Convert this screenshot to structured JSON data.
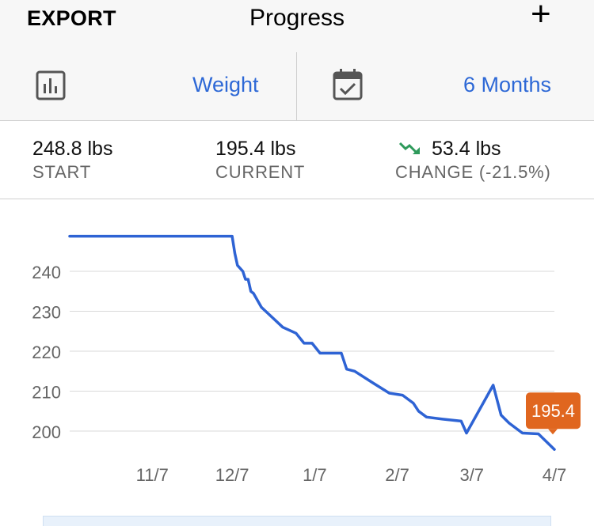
{
  "header": {
    "export_label": "EXPORT",
    "title": "Progress",
    "add_label": "+"
  },
  "selector": {
    "metric_label": "Weight",
    "range_label": "6 Months"
  },
  "stats": {
    "start": {
      "value": "248.8 lbs",
      "label": "START"
    },
    "current": {
      "value": "195.4 lbs",
      "label": "CURRENT"
    },
    "change": {
      "value": "53.4 lbs",
      "label": "CHANGE (-21.5%)"
    }
  },
  "colors": {
    "accent": "#2d68d6",
    "line": "#2e63d4",
    "tooltip": "#e0661f",
    "trend_down": "#2e9a5b"
  },
  "chart_data": {
    "type": "line",
    "title": "",
    "xlabel": "",
    "ylabel": "",
    "x_tick_labels": [
      "11/7",
      "12/7",
      "1/7",
      "2/7",
      "3/7",
      "4/7"
    ],
    "y_ticks": [
      200,
      210,
      220,
      230,
      240
    ],
    "ylim": [
      195,
      250
    ],
    "grid": true,
    "series": [
      {
        "values": [
          {
            "x": "10/7",
            "y": 248.8
          },
          {
            "x": "12/7",
            "y": 248.8
          },
          {
            "x": "12/8",
            "y": 244.5
          },
          {
            "x": "12/9",
            "y": 241.5
          },
          {
            "x": "12/11",
            "y": 240
          },
          {
            "x": "12/12",
            "y": 238
          },
          {
            "x": "12/13",
            "y": 238
          },
          {
            "x": "12/14",
            "y": 235
          },
          {
            "x": "12/15",
            "y": 234.5
          },
          {
            "x": "12/18",
            "y": 231
          },
          {
            "x": "12/22",
            "y": 228.5
          },
          {
            "x": "12/26",
            "y": 226
          },
          {
            "x": "12/31",
            "y": 224.5
          },
          {
            "x": "1/3",
            "y": 222
          },
          {
            "x": "1/6",
            "y": 222
          },
          {
            "x": "1/9",
            "y": 219.5
          },
          {
            "x": "1/17",
            "y": 219.5
          },
          {
            "x": "1/19",
            "y": 215.5
          },
          {
            "x": "1/22",
            "y": 215
          },
          {
            "x": "1/29",
            "y": 212
          },
          {
            "x": "2/4",
            "y": 209.5
          },
          {
            "x": "2/9",
            "y": 209
          },
          {
            "x": "2/13",
            "y": 207
          },
          {
            "x": "2/15",
            "y": 205
          },
          {
            "x": "2/18",
            "y": 203.5
          },
          {
            "x": "2/24",
            "y": 203
          },
          {
            "x": "3/3",
            "y": 202.5
          },
          {
            "x": "3/5",
            "y": 199.5
          },
          {
            "x": "3/15",
            "y": 211.5
          },
          {
            "x": "3/18",
            "y": 204
          },
          {
            "x": "3/21",
            "y": 202
          },
          {
            "x": "3/26",
            "y": 199.5
          },
          {
            "x": "4/1",
            "y": 199.3
          },
          {
            "x": "4/7",
            "y": 195.4
          }
        ]
      }
    ],
    "tooltip": {
      "label": "195.4",
      "x": "4/7",
      "y": 195.4
    }
  }
}
